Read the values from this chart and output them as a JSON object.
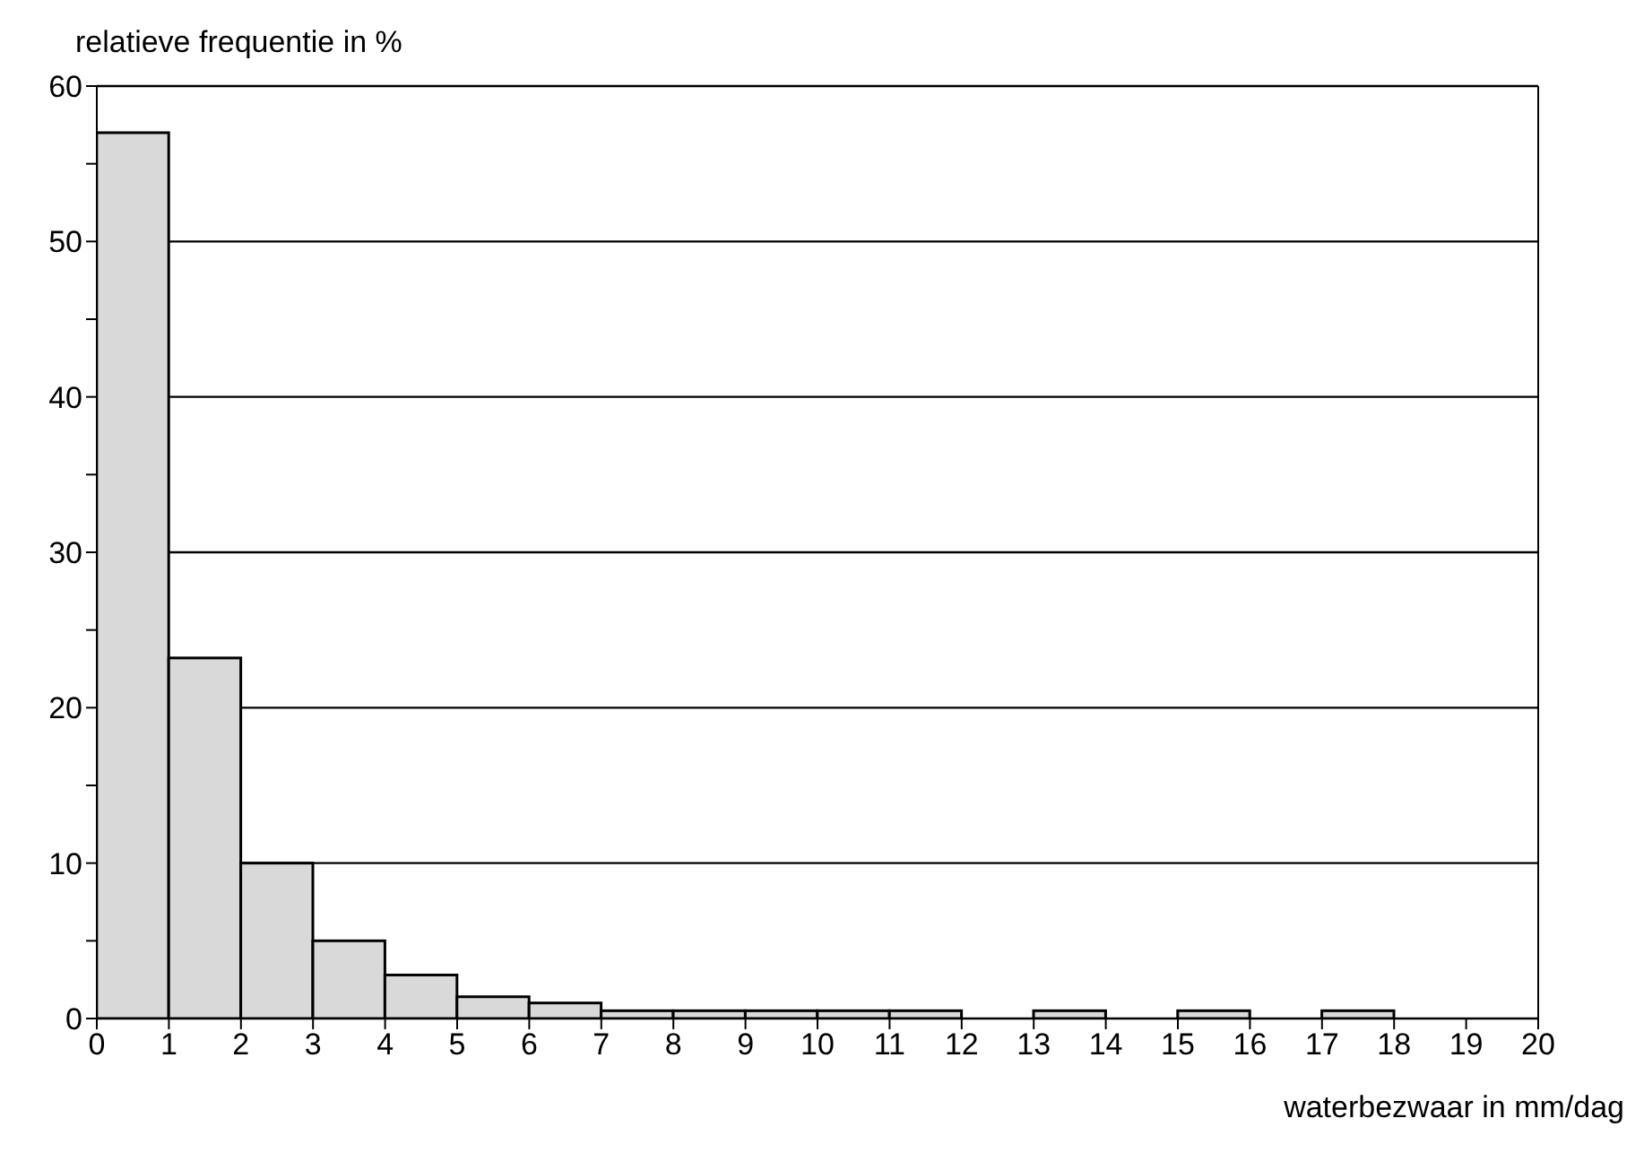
{
  "chart_data": {
    "type": "histogram",
    "ylabel": "relatieve frequentie in %",
    "xlabel": "waterbezwaar in mm/dag",
    "bins": [
      0,
      1,
      2,
      3,
      4,
      5,
      6,
      7,
      8,
      9,
      10,
      11,
      12,
      13,
      14,
      15,
      16,
      17,
      18,
      19,
      20
    ],
    "values": [
      57,
      23.2,
      10,
      5,
      2.8,
      1.4,
      1,
      0.5,
      0.5,
      0.5,
      0.5,
      0.5,
      0,
      0.5,
      0,
      0.5,
      0,
      0.5,
      0,
      0
    ],
    "color": "#d9d9d9",
    "xlim": [
      0,
      20
    ],
    "xticks": [
      0,
      1,
      2,
      3,
      4,
      5,
      6,
      7,
      8,
      9,
      10,
      11,
      12,
      13,
      14,
      15,
      16,
      17,
      18,
      19,
      20
    ],
    "ylim": [
      0,
      60
    ],
    "yticks": [
      0,
      {
        "value": 5,
        "label": null
      },
      10,
      {
        "value": 15,
        "label": null
      },
      20,
      {
        "value": 25,
        "label": null
      },
      30,
      {
        "value": 35,
        "label": null
      },
      40,
      {
        "value": 45,
        "label": null
      },
      50,
      {
        "value": 55,
        "label": null
      },
      60
    ],
    "grid": "y",
    "legend": false
  }
}
